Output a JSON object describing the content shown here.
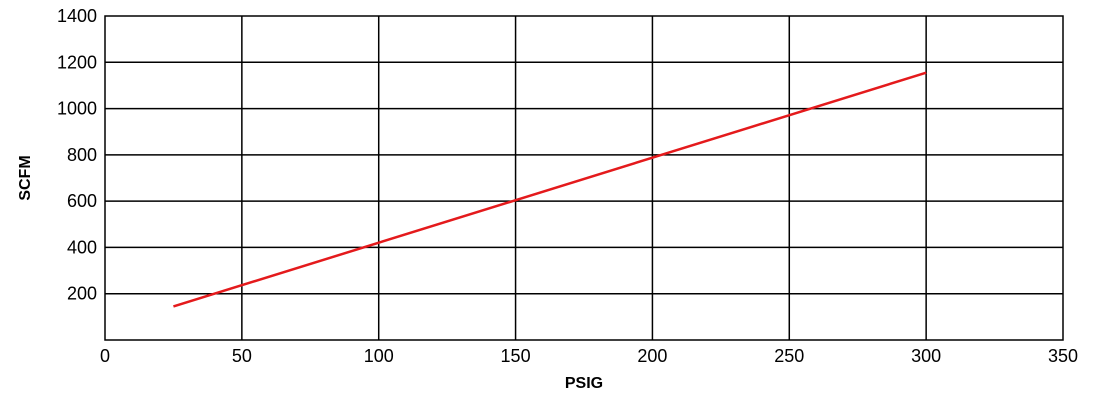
{
  "chart_data": {
    "type": "line",
    "title": "",
    "xlabel": "PSIG",
    "ylabel": "SCFM",
    "xlim": [
      0,
      350
    ],
    "ylim": [
      0,
      1400
    ],
    "x_ticks": [
      0,
      50,
      100,
      150,
      200,
      250,
      300,
      350
    ],
    "y_ticks": [
      200,
      400,
      600,
      800,
      1000,
      1200,
      1400
    ],
    "x_tick_labels": [
      "0",
      "50",
      "100",
      "150",
      "200",
      "250",
      "300",
      "350"
    ],
    "y_tick_labels": [
      "200",
      "400",
      "600",
      "800",
      "1000",
      "1200",
      "1400"
    ],
    "grid": true,
    "legend": "none",
    "series": [
      {
        "color": "#e41a1c",
        "x": [
          25,
          300
        ],
        "y": [
          145,
          1155
        ]
      }
    ]
  }
}
